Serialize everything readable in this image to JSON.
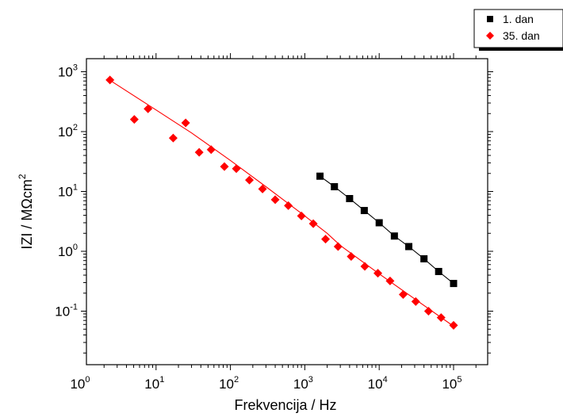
{
  "chart_data": {
    "type": "scatter",
    "xlabel": "Frekvencija / Hz",
    "ylabel_main": "IZI / MΩcm",
    "ylabel_sup": "2",
    "xscale": "log",
    "yscale": "log",
    "xlim": [
      1,
      200000
    ],
    "ylim": [
      0.02,
      1500
    ],
    "grid": false,
    "legend_position": "top-right",
    "x_tick_labels": [
      {
        "base": "10",
        "exp": "0",
        "value": 1
      },
      {
        "base": "10",
        "exp": "1",
        "value": 10
      },
      {
        "base": "10",
        "exp": "2",
        "value": 100
      },
      {
        "base": "10",
        "exp": "3",
        "value": 1000
      },
      {
        "base": "10",
        "exp": "4",
        "value": 10000
      },
      {
        "base": "10",
        "exp": "5",
        "value": 100000
      }
    ],
    "y_tick_labels": [
      {
        "base": "10",
        "exp": "-1",
        "value": 0.1
      },
      {
        "base": "10",
        "exp": "0",
        "value": 1
      },
      {
        "base": "10",
        "exp": "1",
        "value": 10
      },
      {
        "base": "10",
        "exp": "2",
        "value": 100
      },
      {
        "base": "10",
        "exp": "3",
        "value": 1000
      }
    ],
    "series": [
      {
        "name": "1. dan",
        "marker": "square",
        "color": "#000000",
        "x": [
          1600,
          2500,
          4000,
          6300,
          10000,
          16000,
          25000,
          40000,
          63000,
          100000
        ],
        "y": [
          18,
          12,
          7.6,
          4.8,
          3.0,
          1.8,
          1.2,
          0.75,
          0.46,
          0.29
        ]
      },
      {
        "name": "35. dan",
        "marker": "diamond",
        "color": "#ff0000",
        "x": [
          2.4,
          5.1,
          7.8,
          17,
          25,
          38,
          55,
          83,
          120,
          180,
          270,
          400,
          600,
          900,
          1300,
          1900,
          2800,
          4200,
          6400,
          9600,
          14000,
          21000,
          31000,
          46000,
          68000,
          100000
        ],
        "y": [
          730,
          160,
          240,
          78,
          140,
          45,
          50,
          26,
          24,
          15.5,
          11,
          7.3,
          5.8,
          3.9,
          2.9,
          1.6,
          1.2,
          0.82,
          0.56,
          0.43,
          0.32,
          0.19,
          0.145,
          0.1,
          0.078,
          0.058
        ]
      }
    ],
    "fit_lines": [
      {
        "series": "1. dan",
        "color": "#000000",
        "x": [
          1600,
          2500,
          4000,
          6300,
          10000,
          16000,
          25000,
          40000,
          63000,
          100000
        ],
        "y": [
          18,
          12,
          7.6,
          4.8,
          3.0,
          1.8,
          1.2,
          0.75,
          0.46,
          0.29
        ]
      },
      {
        "series": "35. dan",
        "color": "#ff0000",
        "x": [
          2.4,
          10,
          30,
          100,
          300,
          1000,
          2000,
          3000,
          10000,
          30000,
          100000
        ],
        "y": [
          720,
          230,
          95,
          33,
          12,
          3.9,
          2.0,
          1.25,
          0.42,
          0.16,
          0.056
        ]
      }
    ]
  }
}
